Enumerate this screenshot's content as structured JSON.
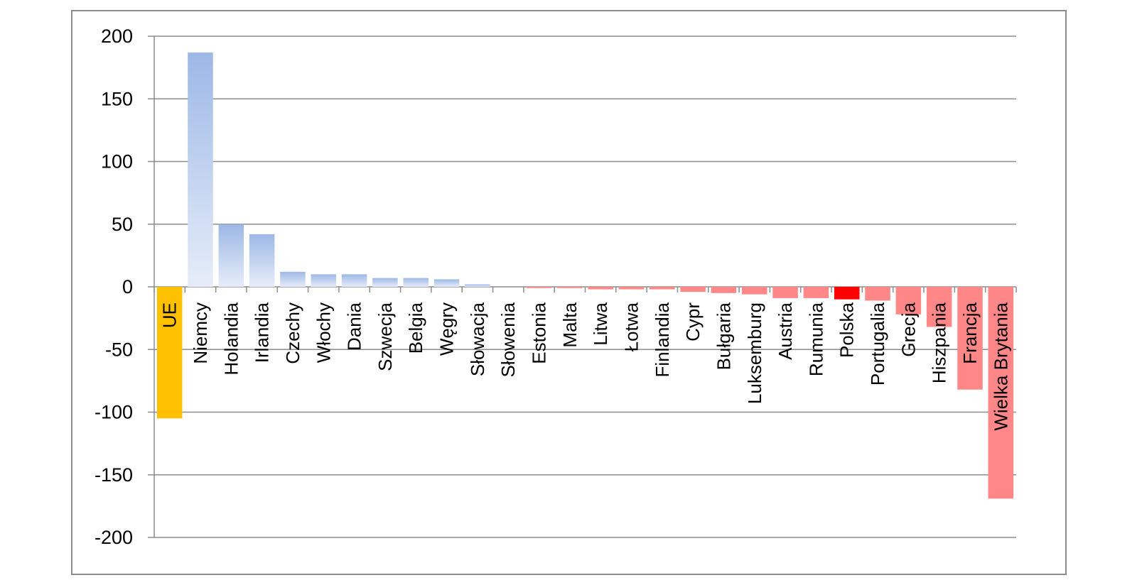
{
  "chart_data": {
    "type": "bar",
    "title": "",
    "xlabel": "",
    "ylabel": "",
    "ylim": [
      -200,
      200
    ],
    "yticks": [
      200,
      150,
      100,
      50,
      0,
      -50,
      -100,
      -150,
      -200
    ],
    "ytick_labels": [
      "200",
      "150",
      "100",
      "50",
      "0",
      "-50",
      "-100",
      "-150",
      "-200"
    ],
    "grid": true,
    "legend": "none",
    "colors": {
      "positive_top": "#9db8e6",
      "positive_bottom": "#e6edf8",
      "negative": "#ff8787",
      "eu": "#ffc000",
      "poland": "#ff0000",
      "grid": "#8c8c8c"
    },
    "categories": [
      "UE",
      "Niemcy",
      "Holandia",
      "Irlandia",
      "Czechy",
      "Włochy",
      "Dania",
      "Szwecja",
      "Belgia",
      "Węgry",
      "Słowacja",
      "Słowenia",
      "Estonia",
      "Malta",
      "Litwa",
      "Łotwa",
      "Finlandia",
      "Cypr",
      "Bułgaria",
      "Luksemburg",
      "Austria",
      "Rumunia",
      "Polska",
      "Portugalia",
      "Grecja",
      "Hiszpania",
      "Francja",
      "Wielka Brytania"
    ],
    "values": [
      -105,
      187,
      50,
      42,
      12,
      10,
      10,
      7,
      7,
      6,
      2,
      0,
      -1,
      -1,
      -2,
      -2,
      -2,
      -4,
      -5,
      -6,
      -9,
      -9,
      -10,
      -11,
      -22,
      -32,
      -82,
      -169
    ],
    "highlight": {
      "UE": "eu",
      "Polska": "poland"
    }
  }
}
